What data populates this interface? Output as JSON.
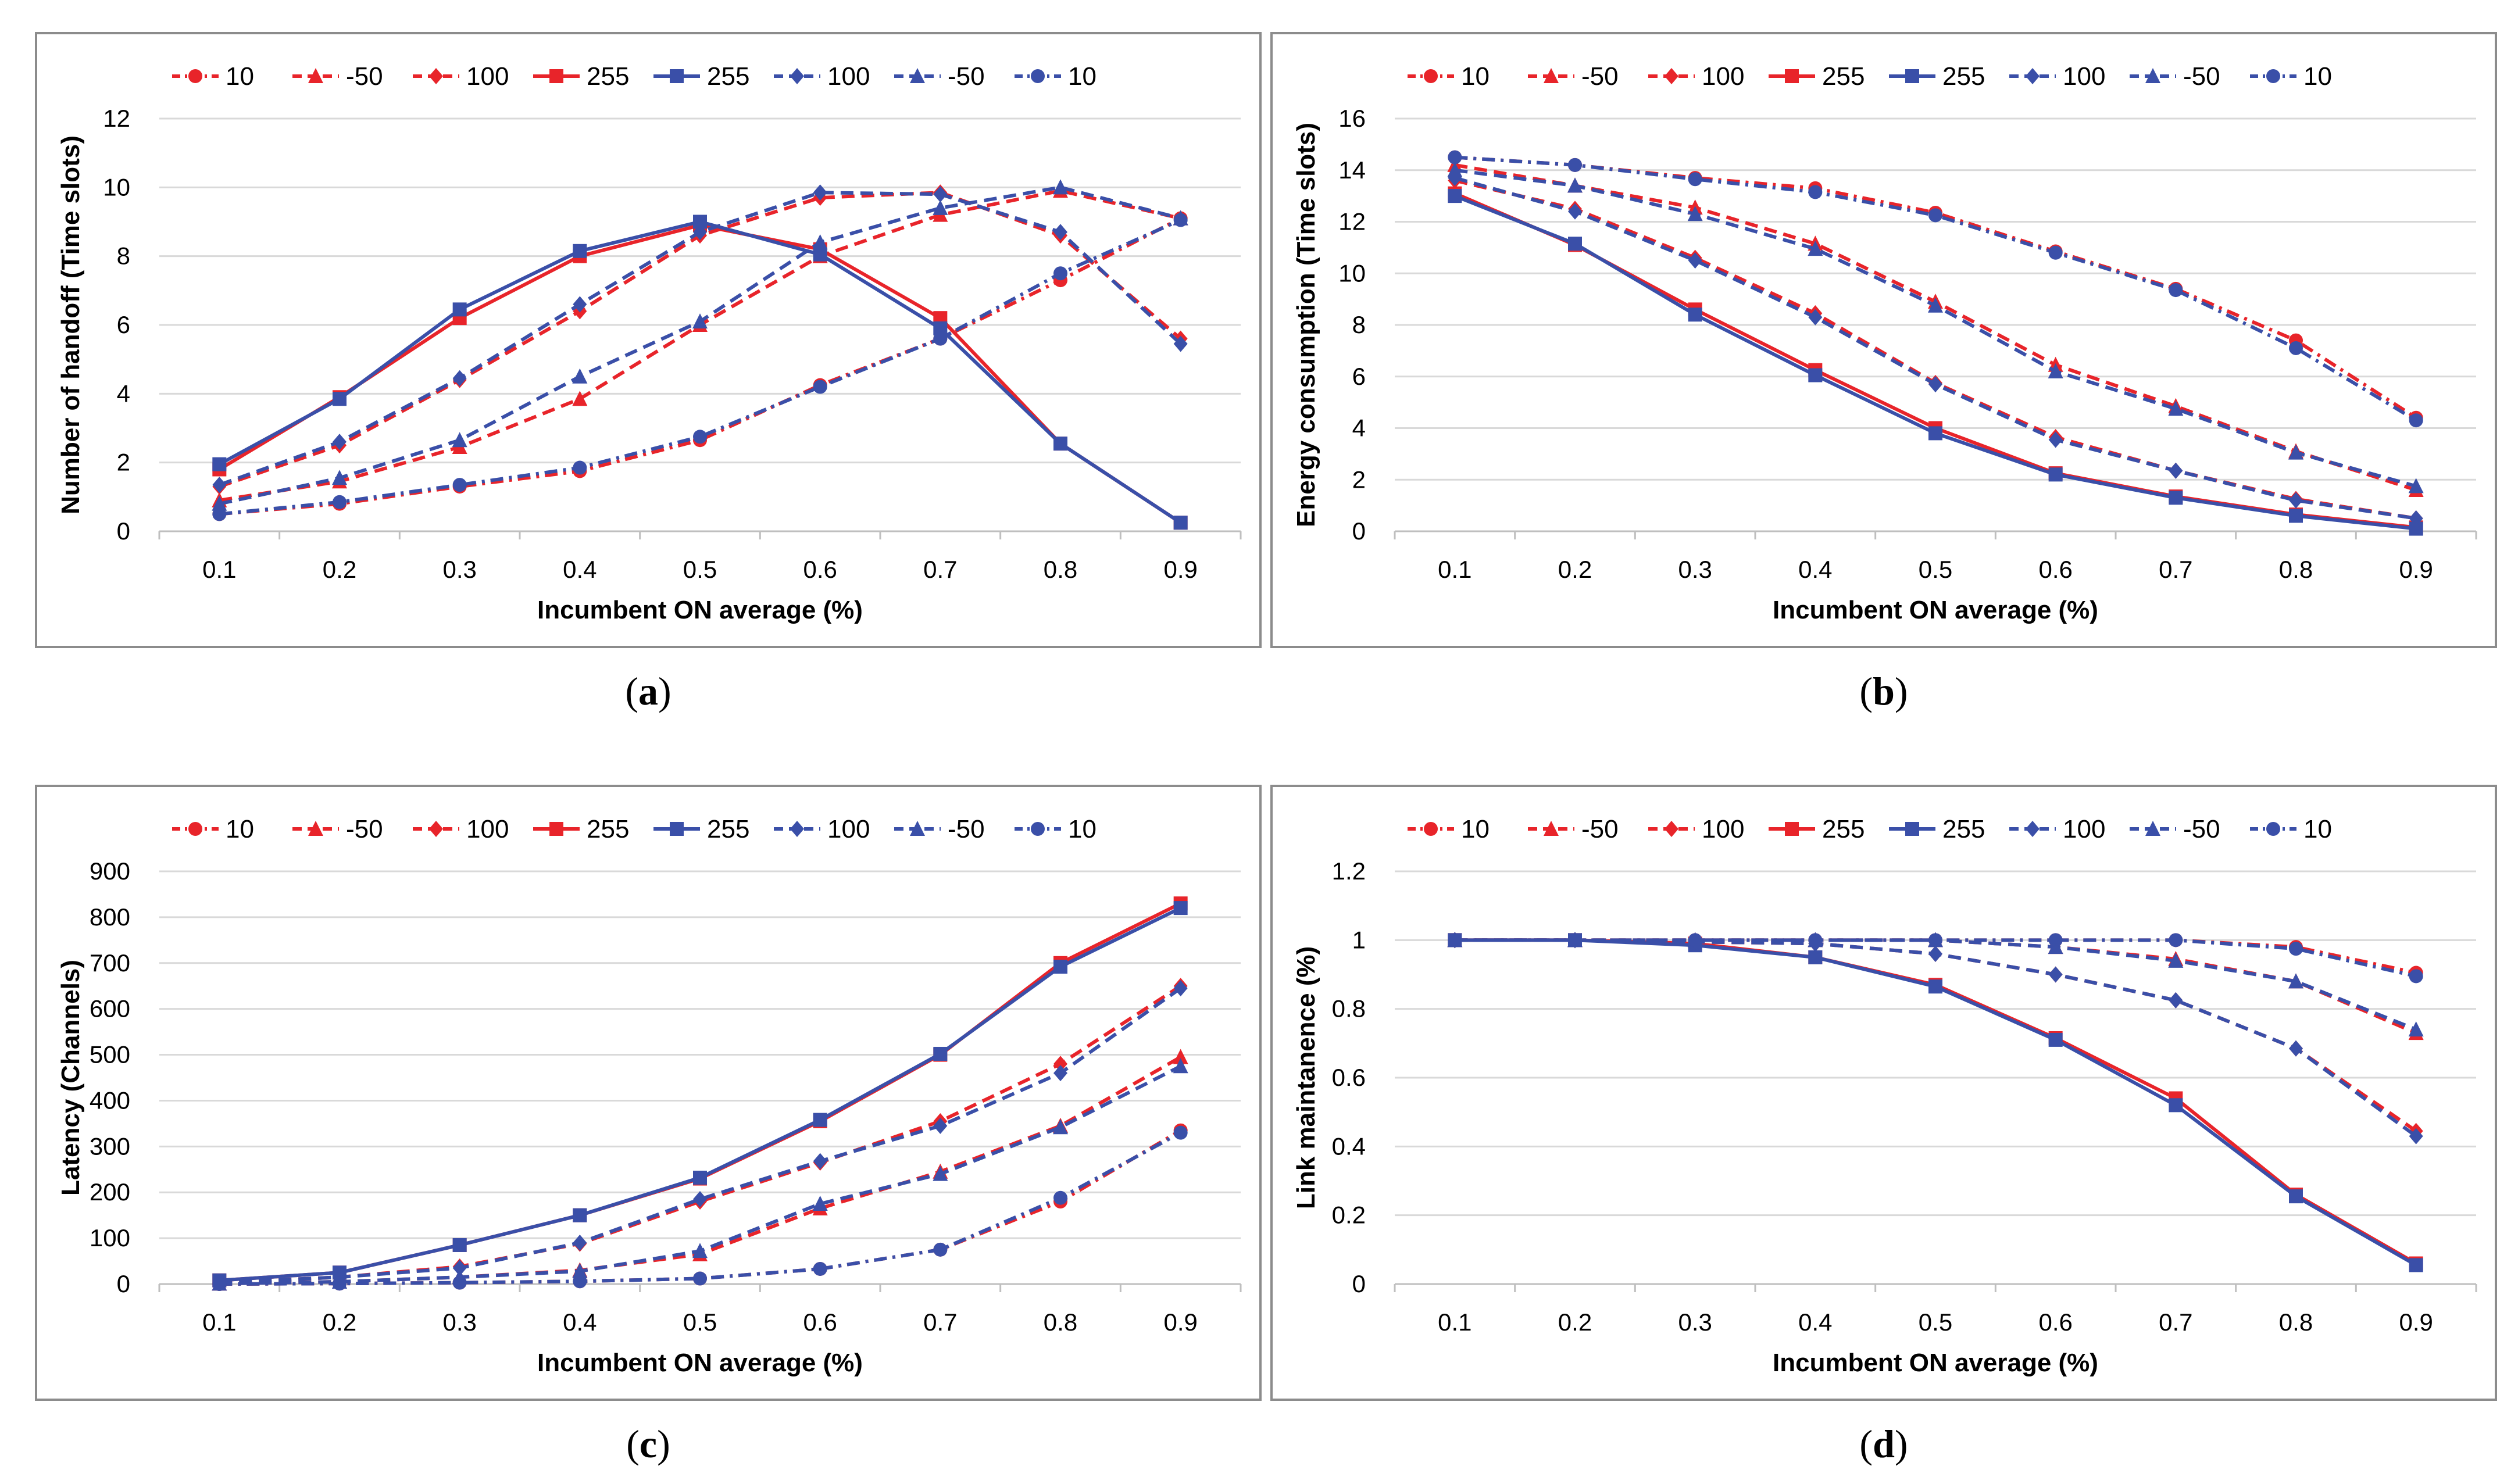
{
  "legend": {
    "entries": [
      {
        "label": "10",
        "color": "#e8242a",
        "marker": "circle",
        "dash": "dashdot"
      },
      {
        "label": "-50",
        "color": "#e8242a",
        "marker": "triangle",
        "dash": "dash"
      },
      {
        "label": "100",
        "color": "#e8242a",
        "marker": "diamond",
        "dash": "dash"
      },
      {
        "label": "255",
        "color": "#e8242a",
        "marker": "square",
        "dash": "solid"
      },
      {
        "label": "255",
        "color": "#3a4fa8",
        "marker": "square",
        "dash": "solid"
      },
      {
        "label": "100",
        "color": "#3a4fa8",
        "marker": "diamond",
        "dash": "dash"
      },
      {
        "label": "-50",
        "color": "#3a4fa8",
        "marker": "triangle",
        "dash": "dash"
      },
      {
        "label": "10",
        "color": "#3a4fa8",
        "marker": "circle",
        "dash": "dashdot"
      }
    ]
  },
  "colors": {
    "red": "#e8242a",
    "blue": "#3a4fa8",
    "grid": "#d9d9d9",
    "border": "#8c8c8c"
  },
  "chart_data": [
    {
      "id": "a",
      "caption": "a",
      "type": "line",
      "xlabel": "Incumbent ON average (%)",
      "ylabel": "Number of handoff (Time slots)",
      "categories": [
        "0.1",
        "0.2",
        "0.3",
        "0.4",
        "0.5",
        "0.6",
        "0.7",
        "0.8",
        "0.9"
      ],
      "ylim": [
        0,
        12
      ],
      "yticks": [
        0,
        2,
        4,
        6,
        8,
        10,
        12
      ],
      "series": [
        {
          "name": "10",
          "color": "red",
          "marker": "circle",
          "dash": "dashdot",
          "values": [
            0.5,
            0.8,
            1.3,
            1.75,
            2.65,
            4.25,
            5.6,
            7.3,
            9.1
          ]
        },
        {
          "name": "-50",
          "color": "red",
          "marker": "triangle",
          "dash": "dash",
          "values": [
            0.9,
            1.45,
            2.45,
            3.85,
            6.0,
            8.0,
            9.2,
            9.9,
            9.1
          ]
        },
        {
          "name": "100",
          "color": "red",
          "marker": "diamond",
          "dash": "dash",
          "values": [
            1.3,
            2.5,
            4.4,
            6.4,
            8.6,
            9.7,
            9.85,
            8.6,
            5.6
          ]
        },
        {
          "name": "255",
          "color": "red",
          "marker": "square",
          "dash": "solid",
          "values": [
            1.8,
            3.9,
            6.2,
            8.0,
            8.9,
            8.2,
            6.2,
            2.55,
            0.25
          ]
        },
        {
          "name": "255",
          "color": "blue",
          "marker": "square",
          "dash": "solid",
          "values": [
            1.95,
            3.85,
            6.45,
            8.15,
            9.0,
            8.05,
            5.9,
            2.55,
            0.25
          ]
        },
        {
          "name": "100",
          "color": "blue",
          "marker": "diamond",
          "dash": "dash",
          "values": [
            1.35,
            2.6,
            4.45,
            6.6,
            8.7,
            9.85,
            9.8,
            8.7,
            5.45
          ]
        },
        {
          "name": "-50",
          "color": "blue",
          "marker": "triangle",
          "dash": "dash",
          "values": [
            0.8,
            1.55,
            2.65,
            4.5,
            6.1,
            8.4,
            9.4,
            10.0,
            9.1
          ]
        },
        {
          "name": "10",
          "color": "blue",
          "marker": "circle",
          "dash": "dashdot",
          "values": [
            0.5,
            0.85,
            1.35,
            1.85,
            2.75,
            4.2,
            5.6,
            7.5,
            9.05
          ]
        }
      ]
    },
    {
      "id": "b",
      "caption": "b",
      "type": "line",
      "xlabel": "Incumbent ON average (%)",
      "ylabel": "Energy consumption (Time slots)",
      "categories": [
        "0.1",
        "0.2",
        "0.3",
        "0.4",
        "0.5",
        "0.6",
        "0.7",
        "0.8",
        "0.9"
      ],
      "ylim": [
        0,
        16
      ],
      "yticks": [
        0,
        2,
        4,
        6,
        8,
        10,
        12,
        14,
        16
      ],
      "series": [
        {
          "name": "10",
          "color": "red",
          "marker": "circle",
          "dash": "dashdot",
          "values": [
            14.5,
            14.2,
            13.7,
            13.3,
            12.35,
            10.85,
            9.4,
            7.4,
            4.4
          ]
        },
        {
          "name": "-50",
          "color": "red",
          "marker": "triangle",
          "dash": "dash",
          "values": [
            14.2,
            13.4,
            12.55,
            11.15,
            8.9,
            6.45,
            4.85,
            3.1,
            1.6
          ]
        },
        {
          "name": "100",
          "color": "red",
          "marker": "diamond",
          "dash": "dash",
          "values": [
            13.6,
            12.5,
            10.6,
            8.45,
            5.75,
            3.65,
            2.35,
            1.25,
            0.5
          ]
        },
        {
          "name": "255",
          "color": "red",
          "marker": "square",
          "dash": "solid",
          "values": [
            13.1,
            11.1,
            8.6,
            6.25,
            4.0,
            2.25,
            1.35,
            0.65,
            0.15
          ]
        },
        {
          "name": "255",
          "color": "blue",
          "marker": "square",
          "dash": "solid",
          "values": [
            13.0,
            11.15,
            8.4,
            6.05,
            3.8,
            2.2,
            1.3,
            0.6,
            0.1
          ]
        },
        {
          "name": "100",
          "color": "blue",
          "marker": "diamond",
          "dash": "dash",
          "values": [
            13.7,
            12.4,
            10.5,
            8.3,
            5.7,
            3.55,
            2.35,
            1.2,
            0.5
          ]
        },
        {
          "name": "-50",
          "color": "blue",
          "marker": "triangle",
          "dash": "dash",
          "values": [
            14.0,
            13.4,
            12.3,
            10.95,
            8.75,
            6.2,
            4.75,
            3.05,
            1.75
          ]
        },
        {
          "name": "10",
          "color": "blue",
          "marker": "circle",
          "dash": "dashdot",
          "values": [
            14.5,
            14.2,
            13.65,
            13.15,
            12.25,
            10.8,
            9.35,
            7.1,
            4.3
          ]
        }
      ]
    },
    {
      "id": "c",
      "caption": "c",
      "type": "line",
      "xlabel": "Incumbent ON average (%)",
      "ylabel": "Latency (Channels)",
      "categories": [
        "0.1",
        "0.2",
        "0.3",
        "0.4",
        "0.5",
        "0.6",
        "0.7",
        "0.8",
        "0.9"
      ],
      "ylim": [
        0,
        900
      ],
      "yticks": [
        0,
        100,
        200,
        300,
        400,
        500,
        600,
        700,
        800,
        900
      ],
      "series": [
        {
          "name": "10",
          "color": "red",
          "marker": "circle",
          "dash": "dashdot",
          "values": [
            0,
            1,
            3,
            6,
            12,
            33,
            75,
            180,
            335
          ]
        },
        {
          "name": "-50",
          "color": "red",
          "marker": "triangle",
          "dash": "dash",
          "values": [
            1,
            5,
            15,
            30,
            65,
            165,
            245,
            345,
            495
          ]
        },
        {
          "name": "100",
          "color": "red",
          "marker": "diamond",
          "dash": "dash",
          "values": [
            3,
            15,
            38,
            88,
            180,
            265,
            355,
            480,
            650
          ]
        },
        {
          "name": "255",
          "color": "red",
          "marker": "square",
          "dash": "solid",
          "values": [
            8,
            25,
            85,
            150,
            230,
            355,
            500,
            700,
            830
          ]
        },
        {
          "name": "255",
          "color": "blue",
          "marker": "square",
          "dash": "solid",
          "values": [
            8,
            25,
            85,
            150,
            232,
            358,
            502,
            692,
            820
          ]
        },
        {
          "name": "100",
          "color": "blue",
          "marker": "diamond",
          "dash": "dash",
          "values": [
            3,
            15,
            35,
            90,
            185,
            268,
            345,
            460,
            645
          ]
        },
        {
          "name": "-50",
          "color": "blue",
          "marker": "triangle",
          "dash": "dash",
          "values": [
            1,
            5,
            15,
            28,
            72,
            175,
            240,
            342,
            475
          ]
        },
        {
          "name": "10",
          "color": "blue",
          "marker": "circle",
          "dash": "dashdot",
          "values": [
            0,
            1,
            3,
            6,
            12,
            33,
            75,
            188,
            330
          ]
        }
      ]
    },
    {
      "id": "d",
      "caption": "d",
      "type": "line",
      "xlabel": "Incumbent ON average (%)",
      "ylabel": "Link maintanence (%)",
      "categories": [
        "0.1",
        "0.2",
        "0.3",
        "0.4",
        "0.5",
        "0.6",
        "0.7",
        "0.8",
        "0.9"
      ],
      "ylim": [
        0,
        1.2
      ],
      "yticks": [
        0,
        0.2,
        0.4,
        0.6,
        0.8,
        1,
        1.2
      ],
      "series": [
        {
          "name": "10",
          "color": "red",
          "marker": "circle",
          "dash": "dashdot",
          "values": [
            1,
            1,
            1,
            1,
            1,
            1,
            1,
            0.98,
            0.905
          ]
        },
        {
          "name": "-50",
          "color": "red",
          "marker": "triangle",
          "dash": "dash",
          "values": [
            1,
            1,
            1,
            1,
            1,
            0.98,
            0.945,
            0.88,
            0.73
          ]
        },
        {
          "name": "100",
          "color": "red",
          "marker": "diamond",
          "dash": "dash",
          "values": [
            1,
            1,
            0.995,
            0.99,
            0.96,
            0.9,
            0.825,
            0.685,
            0.445
          ]
        },
        {
          "name": "255",
          "color": "red",
          "marker": "square",
          "dash": "solid",
          "values": [
            1,
            1,
            0.99,
            0.95,
            0.87,
            0.715,
            0.54,
            0.26,
            0.06
          ]
        },
        {
          "name": "255",
          "color": "blue",
          "marker": "square",
          "dash": "solid",
          "values": [
            1,
            1,
            0.985,
            0.95,
            0.865,
            0.71,
            0.52,
            0.255,
            0.055
          ]
        },
        {
          "name": "100",
          "color": "blue",
          "marker": "diamond",
          "dash": "dash",
          "values": [
            1,
            1,
            0.995,
            0.99,
            0.96,
            0.9,
            0.825,
            0.685,
            0.43
          ]
        },
        {
          "name": "-50",
          "color": "blue",
          "marker": "triangle",
          "dash": "dash",
          "values": [
            1,
            1,
            1,
            1,
            1,
            0.98,
            0.94,
            0.88,
            0.74
          ]
        },
        {
          "name": "10",
          "color": "blue",
          "marker": "circle",
          "dash": "dashdot",
          "values": [
            1,
            1,
            1,
            1,
            1,
            1,
            1,
            0.975,
            0.895
          ]
        }
      ]
    }
  ]
}
